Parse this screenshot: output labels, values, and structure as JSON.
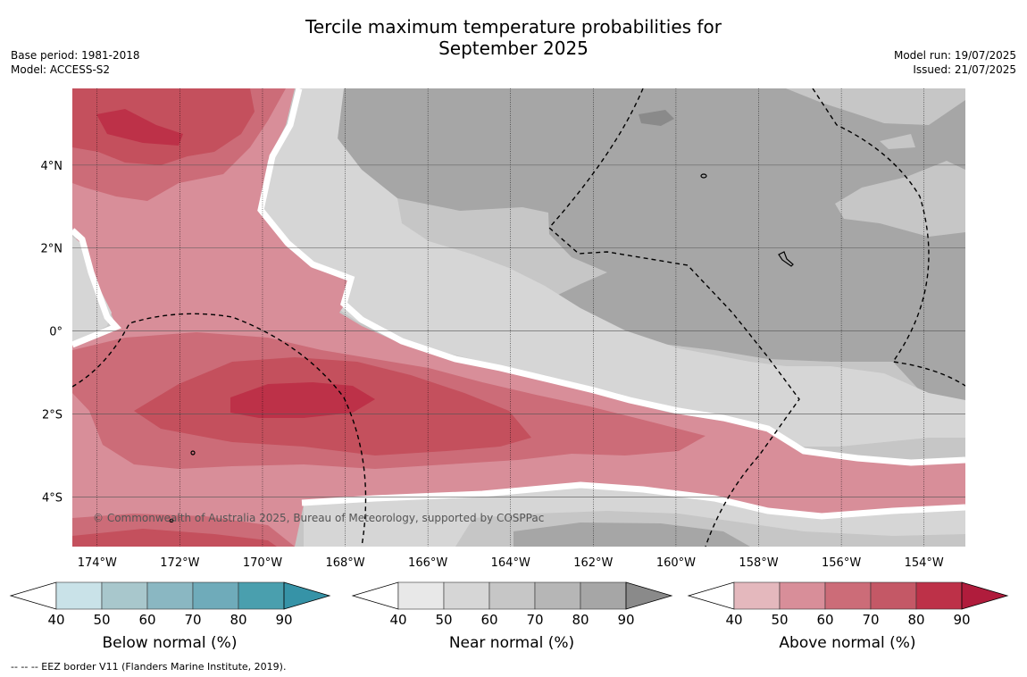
{
  "title_line1": "Tercile maximum temperature probabilities for",
  "title_line2": "September 2025",
  "meta_left": [
    "Base period: 1981-2018",
    "Model: ACCESS-S2"
  ],
  "meta_right": [
    "Model run: 19/07/2025",
    "Issued: 21/07/2025"
  ],
  "copyright": "© Commonwealth of Australia 2025, Bureau of Meteorology, supported by COSPPac",
  "footer": "--  --  -- EEZ border V11 (Flanders Marine Institute, 2019).",
  "map": {
    "lon_range": [
      -174.6,
      -153.0
    ],
    "lat_range": [
      -5.2,
      5.85
    ],
    "lon_ticks": [
      {
        "lon": -174,
        "label": "174°W"
      },
      {
        "lon": -172,
        "label": "172°W"
      },
      {
        "lon": -170,
        "label": "170°W"
      },
      {
        "lon": -168,
        "label": "168°W"
      },
      {
        "lon": -166,
        "label": "166°W"
      },
      {
        "lon": -164,
        "label": "164°W"
      },
      {
        "lon": -162,
        "label": "162°W"
      },
      {
        "lon": -160,
        "label": "160°W"
      },
      {
        "lon": -158,
        "label": "158°W"
      },
      {
        "lon": -156,
        "label": "156°W"
      },
      {
        "lon": -154,
        "label": "154°W"
      }
    ],
    "lat_ticks": [
      {
        "lat": 4,
        "label": "4°N"
      },
      {
        "lat": 2,
        "label": "2°N"
      },
      {
        "lat": 0,
        "label": "0°"
      },
      {
        "lat": -2,
        "label": "2°S"
      },
      {
        "lat": -4,
        "label": "4°S"
      }
    ]
  },
  "colorbars": [
    {
      "name": "below",
      "label": "Below normal (%)",
      "ticks": [
        "40",
        "50",
        "60",
        "70",
        "80",
        "90"
      ],
      "colors": [
        "#ffffff",
        "#c9e2e8",
        "#a8c7cc",
        "#8ab7c2",
        "#6fabba",
        "#4a9fae",
        "#3693a7"
      ]
    },
    {
      "name": "near",
      "label": "Near normal (%)",
      "ticks": [
        "40",
        "50",
        "60",
        "70",
        "80",
        "90"
      ],
      "colors": [
        "#ffffff",
        "#e8e8e8",
        "#d6d6d6",
        "#c6c6c6",
        "#b6b6b6",
        "#a6a6a6",
        "#8a8a8a"
      ]
    },
    {
      "name": "above",
      "label": "Above normal (%)",
      "ticks": [
        "40",
        "50",
        "60",
        "70",
        "80",
        "90"
      ],
      "colors": [
        "#ffffff",
        "#e4b8bd",
        "#d88e99",
        "#cc6c78",
        "#c45866",
        "#bd3148",
        "#b01c3c"
      ]
    }
  ],
  "palette": {
    "ab50": "#d88e99",
    "ab60": "#cc6c78",
    "ab70": "#c4505d",
    "ab80": "#bd3148",
    "nn40": "#d6d6d6",
    "nn50": "#c6c6c6",
    "nn60": "#a6a6a6",
    "nn70": "#8a8a8a",
    "white": "#ffffff"
  }
}
